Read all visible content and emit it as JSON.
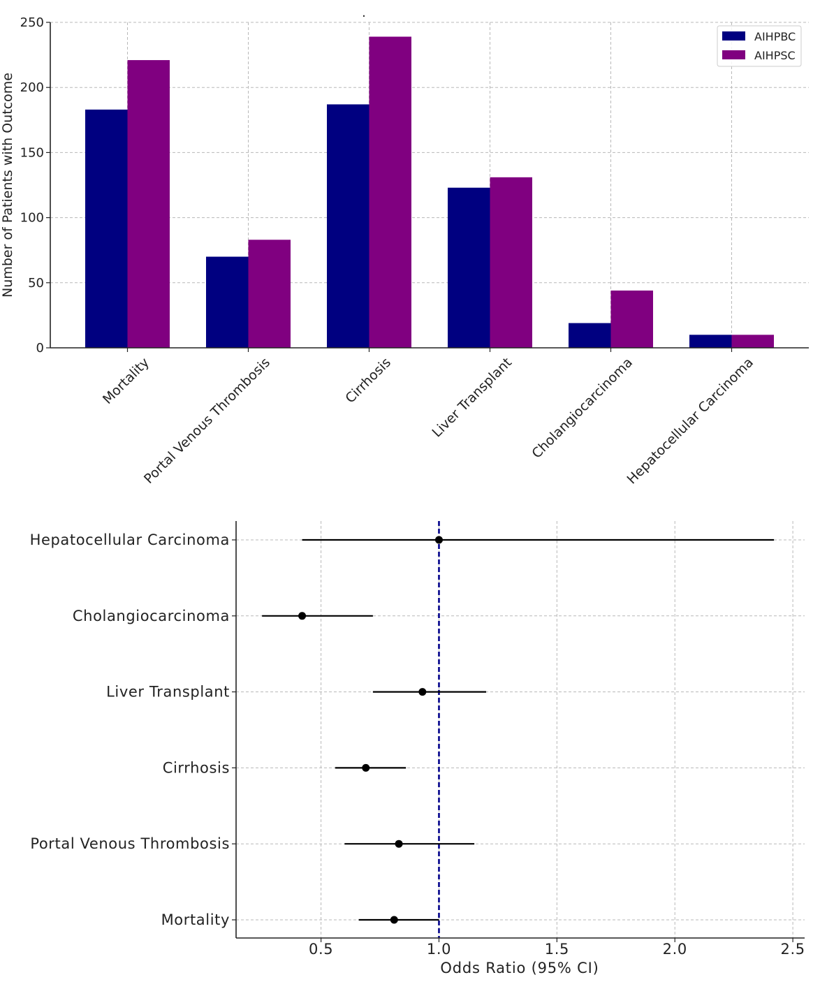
{
  "chart_data": [
    {
      "type": "bar",
      "title": ".",
      "xlabel": "",
      "ylabel": "Number of Patients with Outcome",
      "categories": [
        "Mortality",
        "Portal Venous Thrombosis",
        "Cirrhosis",
        "Liver Transplant",
        "Cholangiocarcinoma",
        "Hepatocellular Carcinoma"
      ],
      "series": [
        {
          "name": "AIHPBC",
          "color": "#000080",
          "values": [
            183,
            70,
            187,
            123,
            19,
            10
          ]
        },
        {
          "name": "AIHPSC",
          "color": "#800080",
          "values": [
            221,
            83,
            239,
            131,
            44,
            10
          ]
        }
      ],
      "ylim": [
        0,
        250
      ],
      "yticks": [
        0,
        50,
        100,
        150,
        200,
        250
      ],
      "grid": true,
      "legend": "top-right"
    },
    {
      "type": "scatter",
      "subtype": "forest-plot",
      "xlabel": "Odds Ratio (95% CI)",
      "ylabel": "",
      "categories": [
        "Mortality",
        "Portal Venous Thrombosis",
        "Cirrhosis",
        "Liver Transplant",
        "Cholangiocarcinoma",
        "Hepatocellular Carcinoma"
      ],
      "points": [
        {
          "label": "Mortality",
          "or": 0.81,
          "lo": 0.66,
          "hi": 1.0
        },
        {
          "label": "Portal Venous Thrombosis",
          "or": 0.83,
          "lo": 0.6,
          "hi": 1.15
        },
        {
          "label": "Cirrhosis",
          "or": 0.69,
          "lo": 0.56,
          "hi": 0.86
        },
        {
          "label": "Liver Transplant",
          "or": 0.93,
          "lo": 0.72,
          "hi": 1.2
        },
        {
          "label": "Cholangiocarcinoma",
          "or": 0.42,
          "lo": 0.25,
          "hi": 0.72
        },
        {
          "label": "Hepatocellular Carcinoma",
          "or": 1.0,
          "lo": 0.42,
          "hi": 2.42
        }
      ],
      "reference_line": 1.0,
      "reference_color": "#00008b",
      "point_color": "#000000",
      "xlim": [
        0.14,
        2.55
      ],
      "xticks": [
        "0.5",
        "1.0",
        "1.5",
        "2.0",
        "2.5"
      ],
      "grid": true
    }
  ]
}
